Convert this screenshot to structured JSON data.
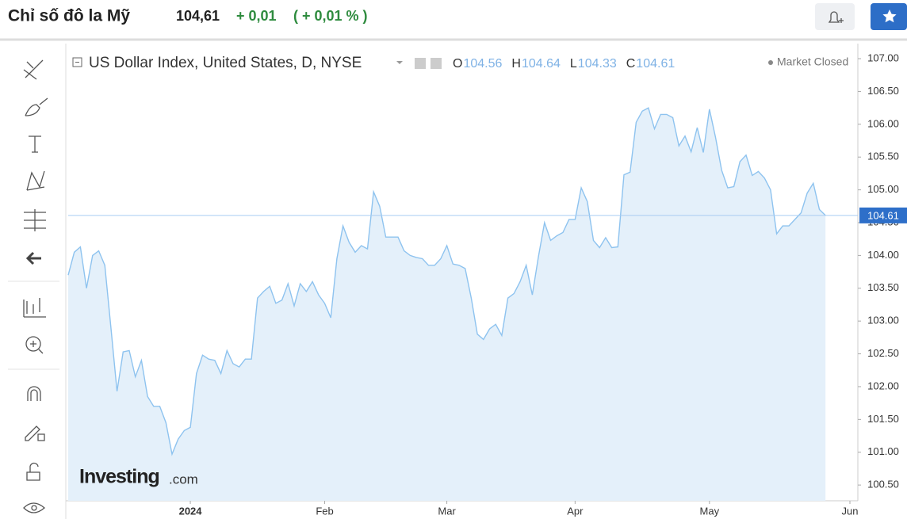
{
  "header": {
    "title": "Chỉ số đô la Mỹ",
    "price": "104,61",
    "change": "+ 0,01",
    "change_pct": "( + 0,01 % )"
  },
  "chart_data": {
    "type": "line",
    "title": "US Dollar Index, United States, D, NYSE",
    "ohlc": [
      {
        "label": "O",
        "value": 104.56
      },
      {
        "label": "H",
        "value": 104.64
      },
      {
        "label": "L",
        "value": 104.33
      },
      {
        "label": "C",
        "value": 104.61
      }
    ],
    "status": "Market Closed",
    "watermark": {
      "brand": "Investing",
      "suffix": ".com"
    },
    "last_price": 104.61,
    "color": "#8ec3ef",
    "fill": "#e4f0fa",
    "categories": [
      null,
      null,
      null,
      null,
      null,
      null,
      null,
      null,
      null,
      null,
      null,
      null,
      null,
      null,
      null,
      null,
      null,
      null,
      null,
      null,
      "2024",
      null,
      null,
      null,
      null,
      null,
      null,
      null,
      null,
      null,
      null,
      null,
      null,
      null,
      null,
      null,
      null,
      null,
      null,
      null,
      null,
      null,
      "Feb",
      null,
      null,
      null,
      null,
      null,
      null,
      null,
      null,
      null,
      null,
      null,
      null,
      null,
      null,
      null,
      null,
      null,
      null,
      null,
      "Mar",
      null,
      null,
      null,
      null,
      null,
      null,
      null,
      null,
      null,
      null,
      null,
      null,
      null,
      null,
      null,
      null,
      null,
      null,
      null,
      null,
      "Apr",
      null,
      null,
      null,
      null,
      null,
      null,
      null,
      null,
      null,
      null,
      null,
      null,
      null,
      null,
      null,
      null,
      null,
      null,
      null,
      null,
      null,
      "May",
      null,
      null,
      null,
      null,
      null,
      null,
      null,
      null,
      null,
      null,
      null,
      null,
      null,
      null,
      null,
      null,
      null,
      null,
      null,
      null,
      null,
      null,
      "Jun"
    ],
    "values": [
      103.7,
      104.05,
      104.13,
      103.5,
      104.0,
      104.07,
      103.85,
      102.9,
      101.93,
      102.53,
      102.55,
      102.15,
      102.4,
      101.85,
      101.7,
      101.7,
      101.45,
      100.97,
      101.2,
      101.33,
      101.38,
      102.2,
      102.48,
      102.42,
      102.4,
      102.2,
      102.55,
      102.35,
      102.3,
      102.42,
      102.42,
      103.35,
      103.45,
      103.53,
      103.27,
      103.32,
      103.57,
      103.23,
      103.57,
      103.45,
      103.6,
      103.4,
      103.27,
      103.05,
      103.95,
      104.45,
      104.2,
      104.05,
      104.15,
      104.1,
      104.97,
      104.75,
      104.28,
      104.28,
      104.28,
      104.07,
      104.0,
      103.97,
      103.95,
      103.85,
      103.85,
      103.95,
      104.15,
      103.87,
      103.85,
      103.8,
      103.35,
      102.8,
      102.72,
      102.88,
      102.95,
      102.78,
      103.35,
      103.42,
      103.6,
      103.85,
      103.4,
      103.98,
      104.5,
      104.23,
      104.3,
      104.35,
      104.55,
      104.55,
      105.03,
      104.82,
      104.23,
      104.12,
      104.27,
      104.12,
      104.13,
      105.23,
      105.27,
      106.03,
      106.2,
      106.25,
      105.93,
      106.15,
      106.15,
      106.1,
      105.67,
      105.82,
      105.58,
      105.95,
      105.57,
      106.23,
      105.8,
      105.3,
      105.03,
      105.05,
      105.43,
      105.53,
      105.22,
      105.28,
      105.18,
      105.0,
      104.33,
      104.45,
      104.45,
      104.55,
      104.65,
      104.95,
      105.1,
      104.7,
      104.61,
      null,
      null,
      null,
      null
    ],
    "ylim": [
      100.26,
      107.23
    ],
    "yticks": [
      {
        "value": 100.5,
        "label": "100.50"
      },
      {
        "value": 101,
        "label": "101.00"
      },
      {
        "value": 101.5,
        "label": "101.50"
      },
      {
        "value": 102,
        "label": "102.00"
      },
      {
        "value": 102.5,
        "label": "102.50"
      },
      {
        "value": 103,
        "label": "103.00"
      },
      {
        "value": 103.5,
        "label": "103.50"
      },
      {
        "value": 104,
        "label": "104.00"
      },
      {
        "value": 104.5,
        "label": "104.50"
      },
      {
        "value": 105,
        "label": "105.00"
      },
      {
        "value": 105.5,
        "label": "105.50"
      },
      {
        "value": 106,
        "label": "106.00"
      },
      {
        "value": 106.5,
        "label": "106.50"
      },
      {
        "value": 107,
        "label": "107.00"
      }
    ],
    "grid": false
  }
}
